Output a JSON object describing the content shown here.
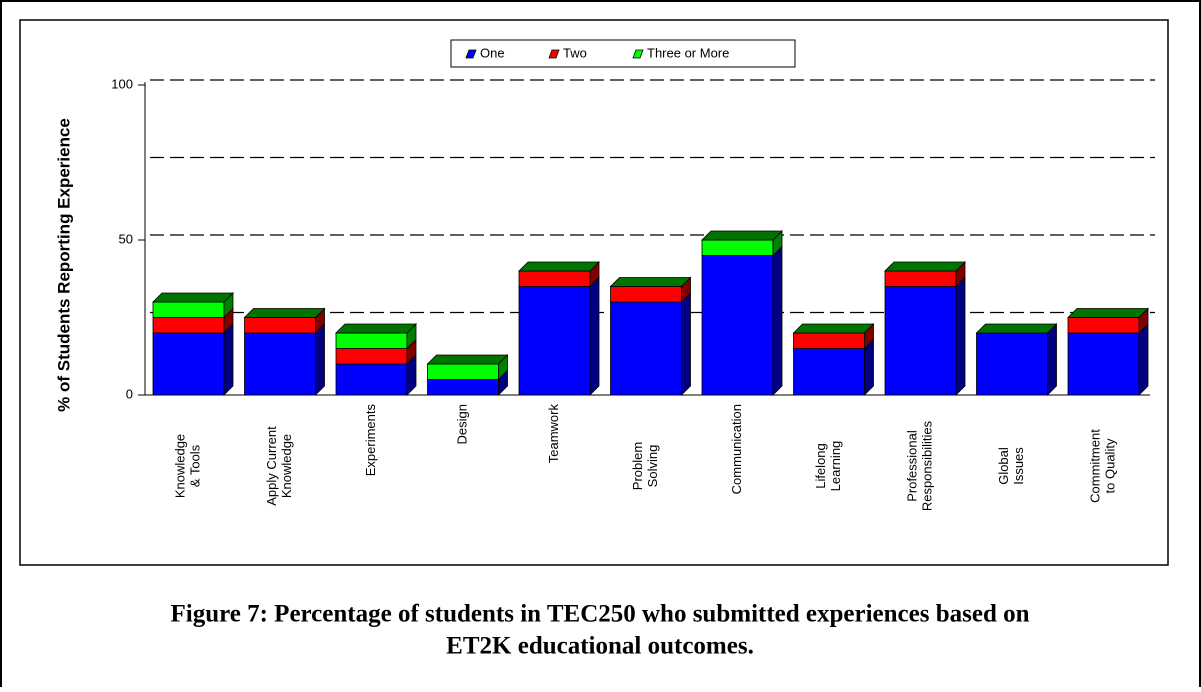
{
  "chart_data": {
    "type": "bar3d_stacked",
    "ylabel": "% of Students Reporting Experience",
    "categories": [
      [
        "Knowledge",
        "& Tools"
      ],
      [
        "Apply Current",
        "Knowledge"
      ],
      [
        "Experiments"
      ],
      [
        "Design"
      ],
      [
        "Teamwork"
      ],
      [
        "Problem",
        "Solving"
      ],
      [
        "Communication"
      ],
      [
        "Lifelong",
        "Learning"
      ],
      [
        "Professional",
        "Responsibilities"
      ],
      [
        "Global",
        "Issues"
      ],
      [
        "Commitment",
        "to Quality"
      ]
    ],
    "series": [
      {
        "name": "One",
        "color": "#0000ff",
        "values": [
          20,
          20,
          10,
          5,
          35,
          30,
          45,
          15,
          35,
          20,
          20
        ]
      },
      {
        "name": "Two",
        "color": "#ff0000",
        "values": [
          5,
          5,
          5,
          0,
          5,
          5,
          0,
          5,
          5,
          0,
          5
        ]
      },
      {
        "name": "Three or More",
        "color": "#00ff00",
        "values": [
          5,
          0,
          5,
          5,
          0,
          0,
          5,
          0,
          0,
          0,
          0
        ]
      }
    ],
    "ylim": [
      0,
      100
    ],
    "yticks": [
      0,
      50,
      100
    ],
    "ygrid": [
      25,
      50,
      75,
      100
    ],
    "legend": "top"
  },
  "caption": [
    "Figure 7:  Percentage of students in TEC250 who submitted experiences based on",
    "ET2K educational outcomes."
  ]
}
